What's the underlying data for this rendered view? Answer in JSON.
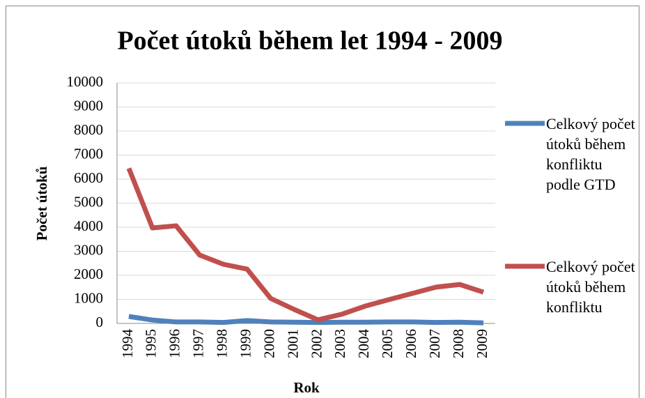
{
  "chart_data": {
    "type": "line",
    "title": "Počet útoků během let 1994 - 2009",
    "xlabel": "Rok",
    "ylabel": "Počet útoků",
    "categories": [
      "1994",
      "1995",
      "1996",
      "1997",
      "1998",
      "1999",
      "2000",
      "2001",
      "2002",
      "2003",
      "2004",
      "2005",
      "2006",
      "2007",
      "2008",
      "2009"
    ],
    "series": [
      {
        "name": "Celkový počet útoků během konfliktu podle GTD",
        "color": "#4f81bd",
        "values": [
          290,
          140,
          60,
          60,
          40,
          120,
          60,
          50,
          40,
          50,
          50,
          60,
          60,
          40,
          50,
          20
        ]
      },
      {
        "name": "Celkový počet útoků během konfliktu",
        "color": "#c0504d",
        "values": [
          6450,
          3970,
          4060,
          2840,
          2460,
          2260,
          1040,
          580,
          150,
          380,
          720,
          990,
          1250,
          1510,
          1620,
          1300
        ]
      }
    ],
    "ylim": [
      0,
      10000
    ],
    "yticks": [
      0,
      1000,
      2000,
      3000,
      4000,
      5000,
      6000,
      7000,
      8000,
      9000,
      10000
    ],
    "grid": true,
    "legend": "right"
  }
}
